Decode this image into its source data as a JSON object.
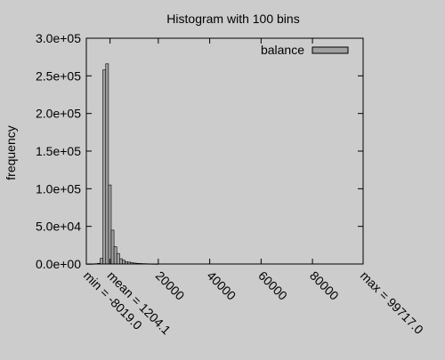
{
  "chart_data": {
    "type": "bar",
    "title": "Histogram with 100 bins",
    "xlabel": "",
    "ylabel": "frequency",
    "legend": {
      "position": "top-right",
      "entries": [
        "balance"
      ]
    },
    "xlim": [
      -8019.0,
      99717.0
    ],
    "ylim": [
      0,
      300000
    ],
    "y_ticks": [
      {
        "value": 0,
        "label": "0.0e+00"
      },
      {
        "value": 50000,
        "label": "5.0e+04"
      },
      {
        "value": 100000,
        "label": "1.0e+05"
      },
      {
        "value": 150000,
        "label": "1.5e+05"
      },
      {
        "value": 200000,
        "label": "2.0e+05"
      },
      {
        "value": 250000,
        "label": "2.5e+05"
      },
      {
        "value": 300000,
        "label": "3.0e+05"
      }
    ],
    "x_ticks": [
      {
        "value": -8019.0,
        "label": "min = -8019.0"
      },
      {
        "value": 1204.1,
        "label": "mean = 1204.1"
      },
      {
        "value": 20000,
        "label": "20000"
      },
      {
        "value": 40000,
        "label": "40000"
      },
      {
        "value": 60000,
        "label": "60000"
      },
      {
        "value": 80000,
        "label": "80000"
      },
      {
        "value": 99717.0,
        "label": "max = 99717.0"
      }
    ],
    "bin_width": 1077.36,
    "grid": false,
    "series": [
      {
        "name": "balance",
        "color": "#a0a0a0",
        "bin_starts": [
          -8019.0,
          -6941.6,
          -5864.3,
          -4786.9,
          -3709.6,
          -2632.2,
          -1554.8,
          -477.5,
          599.9,
          1677.2,
          2754.6,
          3831.9,
          4909.3,
          5986.7,
          7064.0,
          8141.4,
          9218.7,
          10296.1,
          11373.5,
          12450.8,
          13528.2,
          14605.6,
          15682.9,
          16760.3,
          17837.6,
          18915.0
        ],
        "values": [
          80,
          120,
          200,
          400,
          900,
          7500,
          258000,
          266000,
          105000,
          45000,
          23000,
          14000,
          7000,
          5000,
          3000,
          2500,
          1800,
          1200,
          900,
          700,
          500,
          400,
          300,
          250,
          200,
          150
        ]
      }
    ]
  }
}
